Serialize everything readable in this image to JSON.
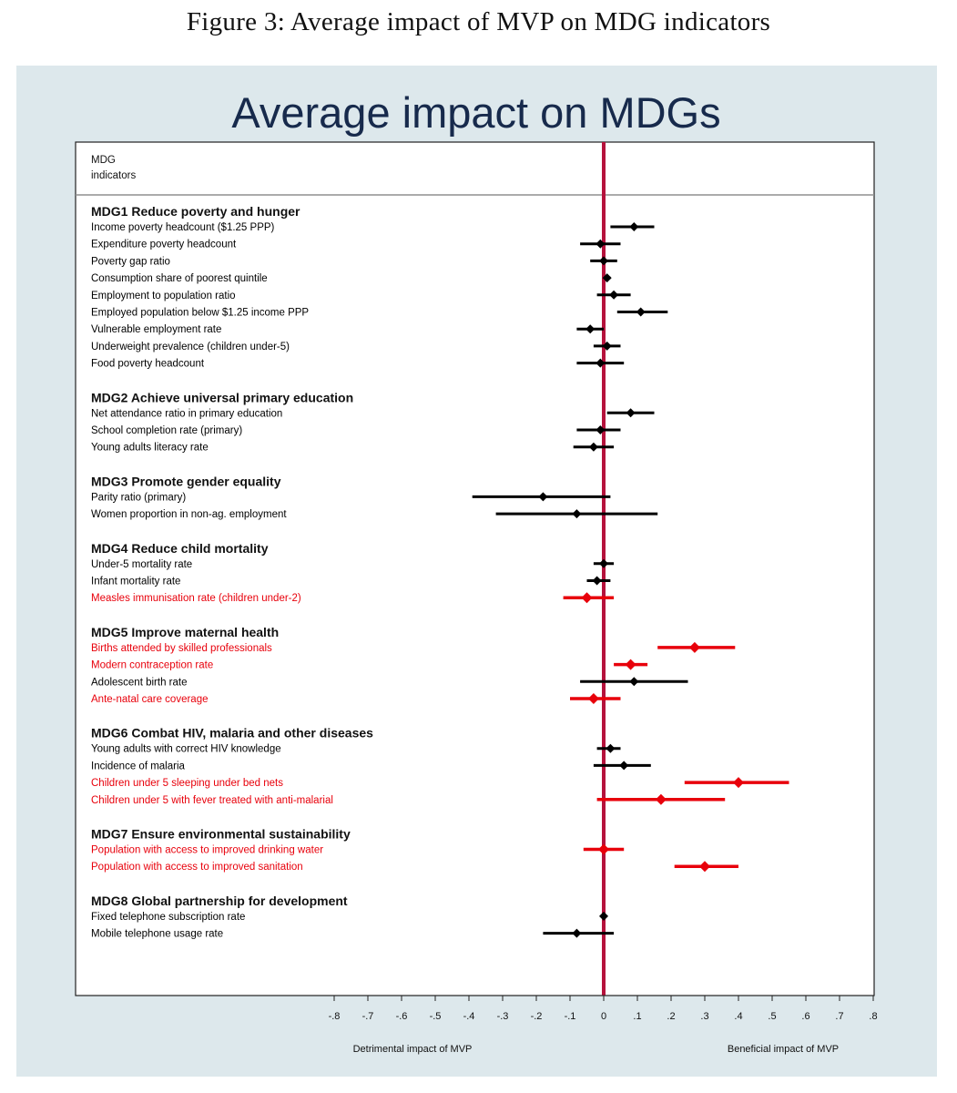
{
  "caption": "Figure 3: Average impact of MVP on MDG indicators",
  "colors": {
    "panel_bg": "#dde8ec",
    "plot_bg": "#ffffff",
    "zero_line": "#b5123c",
    "highlight": "#e8000b",
    "normal": "#000000",
    "title": "#172a4c"
  },
  "chart_data": {
    "type": "forest",
    "title": "Average impact on MDGs",
    "header_label_lines": [
      "MDG",
      "indicators"
    ],
    "xlabel_left": "Detrimental impact of MVP",
    "xlabel_right": "Beneficial impact of MVP",
    "xlim": [
      -0.8,
      0.8
    ],
    "ticks": [
      -0.8,
      -0.7,
      -0.6,
      -0.5,
      -0.4,
      -0.3,
      -0.2,
      -0.1,
      0,
      0.1,
      0.2,
      0.3,
      0.4,
      0.5,
      0.6,
      0.7,
      0.8
    ],
    "tick_labels": [
      "-.8",
      "-.7",
      "-.6",
      "-.5",
      "-.4",
      "-.3",
      "-.2",
      "-.1",
      "0",
      ".1",
      ".2",
      ".3",
      ".4",
      ".5",
      ".6",
      ".7",
      ".8"
    ],
    "groups": [
      {
        "label": "MDG1 Reduce poverty and hunger",
        "indicators": [
          {
            "label": "Income poverty headcount ($1.25 PPP)",
            "estimate": 0.09,
            "lo": 0.02,
            "hi": 0.15,
            "highlight": false
          },
          {
            "label": "Expenditure poverty headcount",
            "estimate": -0.01,
            "lo": -0.07,
            "hi": 0.05,
            "highlight": false
          },
          {
            "label": "Poverty gap ratio",
            "estimate": 0.0,
            "lo": -0.04,
            "hi": 0.04,
            "highlight": false
          },
          {
            "label": "Consumption share of poorest quintile",
            "estimate": 0.01,
            "lo": 0.0,
            "hi": 0.02,
            "highlight": false
          },
          {
            "label": "Employment to population ratio",
            "estimate": 0.03,
            "lo": -0.02,
            "hi": 0.08,
            "highlight": false
          },
          {
            "label": "Employed population below $1.25 income PPP",
            "estimate": 0.11,
            "lo": 0.04,
            "hi": 0.19,
            "highlight": false
          },
          {
            "label": "Vulnerable employment rate",
            "estimate": -0.04,
            "lo": -0.08,
            "hi": 0.0,
            "highlight": false
          },
          {
            "label": "Underweight prevalence (children under-5)",
            "estimate": 0.01,
            "lo": -0.03,
            "hi": 0.05,
            "highlight": false
          },
          {
            "label": "Food poverty headcount",
            "estimate": -0.01,
            "lo": -0.08,
            "hi": 0.06,
            "highlight": false
          }
        ]
      },
      {
        "label": "MDG2 Achieve universal primary education",
        "indicators": [
          {
            "label": "Net attendance ratio in primary education",
            "estimate": 0.08,
            "lo": 0.01,
            "hi": 0.15,
            "highlight": false
          },
          {
            "label": "School completion rate (primary)",
            "estimate": -0.01,
            "lo": -0.08,
            "hi": 0.05,
            "highlight": false
          },
          {
            "label": "Young adults literacy rate",
            "estimate": -0.03,
            "lo": -0.09,
            "hi": 0.03,
            "highlight": false
          }
        ]
      },
      {
        "label": "MDG3 Promote gender equality",
        "indicators": [
          {
            "label": "Parity ratio (primary)",
            "estimate": -0.18,
            "lo": -0.39,
            "hi": 0.02,
            "highlight": false
          },
          {
            "label": "Women proportion in non-ag. employment",
            "estimate": -0.08,
            "lo": -0.32,
            "hi": 0.16,
            "highlight": false
          }
        ]
      },
      {
        "label": "MDG4 Reduce child mortality",
        "indicators": [
          {
            "label": "Under-5 mortality rate",
            "estimate": 0.0,
            "lo": -0.03,
            "hi": 0.03,
            "highlight": false
          },
          {
            "label": "Infant mortality rate",
            "estimate": -0.02,
            "lo": -0.05,
            "hi": 0.02,
            "highlight": false
          },
          {
            "label": "Measles immunisation rate (children under-2)",
            "estimate": -0.05,
            "lo": -0.12,
            "hi": 0.03,
            "highlight": true
          }
        ]
      },
      {
        "label": "MDG5 Improve maternal health",
        "indicators": [
          {
            "label": "Births attended by skilled professionals",
            "estimate": 0.27,
            "lo": 0.16,
            "hi": 0.39,
            "highlight": true
          },
          {
            "label": "Modern contraception rate",
            "estimate": 0.08,
            "lo": 0.03,
            "hi": 0.13,
            "highlight": true
          },
          {
            "label": "Adolescent birth rate",
            "estimate": 0.09,
            "lo": -0.07,
            "hi": 0.25,
            "highlight": false
          },
          {
            "label": "Ante-natal care coverage",
            "estimate": -0.03,
            "lo": -0.1,
            "hi": 0.05,
            "highlight": true
          }
        ]
      },
      {
        "label": "MDG6 Combat HIV, malaria and other diseases",
        "indicators": [
          {
            "label": "Young adults with correct HIV knowledge",
            "estimate": 0.02,
            "lo": -0.02,
            "hi": 0.05,
            "highlight": false
          },
          {
            "label": "Incidence of malaria",
            "estimate": 0.06,
            "lo": -0.03,
            "hi": 0.14,
            "highlight": false
          },
          {
            "label": "Children under 5 sleeping under bed nets",
            "estimate": 0.4,
            "lo": 0.24,
            "hi": 0.55,
            "highlight": true
          },
          {
            "label": "Children under 5 with fever treated with anti-malarial",
            "estimate": 0.17,
            "lo": -0.02,
            "hi": 0.36,
            "highlight": true
          }
        ]
      },
      {
        "label": "MDG7 Ensure environmental sustainability",
        "indicators": [
          {
            "label": "Population with access to improved drinking water",
            "estimate": 0.0,
            "lo": -0.06,
            "hi": 0.06,
            "highlight": true
          },
          {
            "label": "Population with access to improved sanitation",
            "estimate": 0.3,
            "lo": 0.21,
            "hi": 0.4,
            "highlight": true
          }
        ]
      },
      {
        "label": "MDG8 Global partnership for development",
        "indicators": [
          {
            "label": "Fixed telephone subscription rate",
            "estimate": 0.0,
            "lo": 0.0,
            "hi": 0.0,
            "highlight": false
          },
          {
            "label": "Mobile telephone usage rate",
            "estimate": -0.08,
            "lo": -0.18,
            "hi": 0.03,
            "highlight": false
          }
        ]
      }
    ]
  }
}
